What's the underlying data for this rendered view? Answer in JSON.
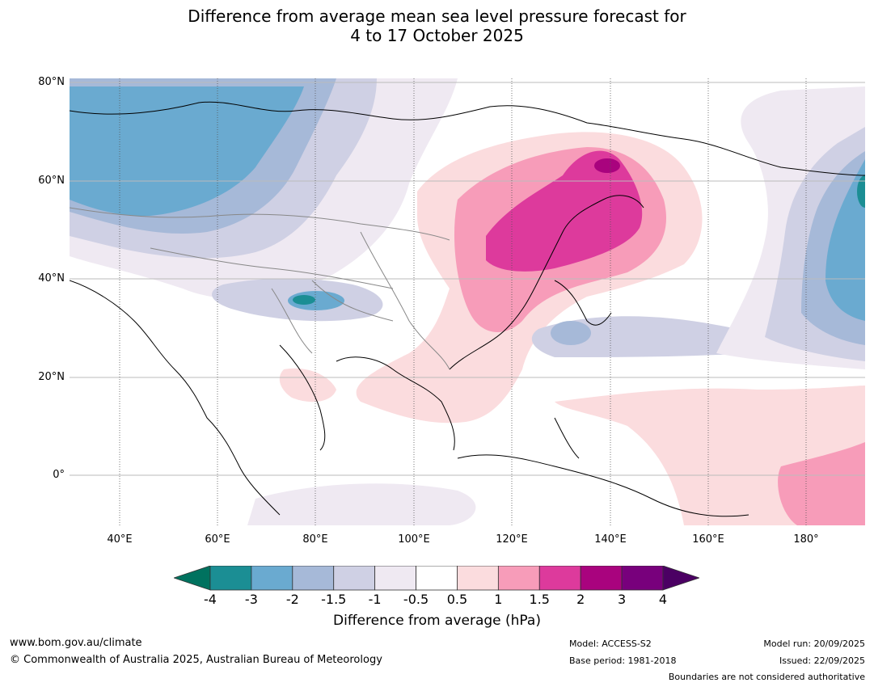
{
  "title": {
    "line1": "Difference from average mean sea level pressure forecast for",
    "line2": "4 to 17 October 2025"
  },
  "axes": {
    "lat_labels": [
      "80°N",
      "60°N",
      "40°N",
      "20°N",
      "0°"
    ],
    "lon_labels": [
      "40°E",
      "60°E",
      "80°E",
      "100°E",
      "120°E",
      "140°E",
      "160°E",
      "180°"
    ]
  },
  "colorbar": {
    "ticks": [
      "-4",
      "-3",
      "-2",
      "-1.5",
      "-1",
      "-0.5",
      "0.5",
      "1",
      "1.5",
      "2",
      "3",
      "4"
    ],
    "colors": [
      "#1b8e94",
      "#6aaad0",
      "#a6b9d8",
      "#cfd0e4",
      "#efe9f2",
      "#ffffff",
      "#fbdcde",
      "#f79cb9",
      "#dd3a9c",
      "#a9037e",
      "#78007c"
    ],
    "under_color": "#00725f",
    "over_color": "#4b0063",
    "label": "Difference from average (hPa)"
  },
  "footer": {
    "website": "www.bom.gov.au/climate",
    "copyright": "© Commonwealth of Australia 2025, Australian Bureau of Meteorology",
    "model": "Model: ACCESS-S2",
    "base_period": "Base period: 1981-2018",
    "model_run": "Model run: 20/09/2025",
    "issued": "Issued: 22/09/2025",
    "disclaimer": "Boundaries are not considered authoritative"
  }
}
